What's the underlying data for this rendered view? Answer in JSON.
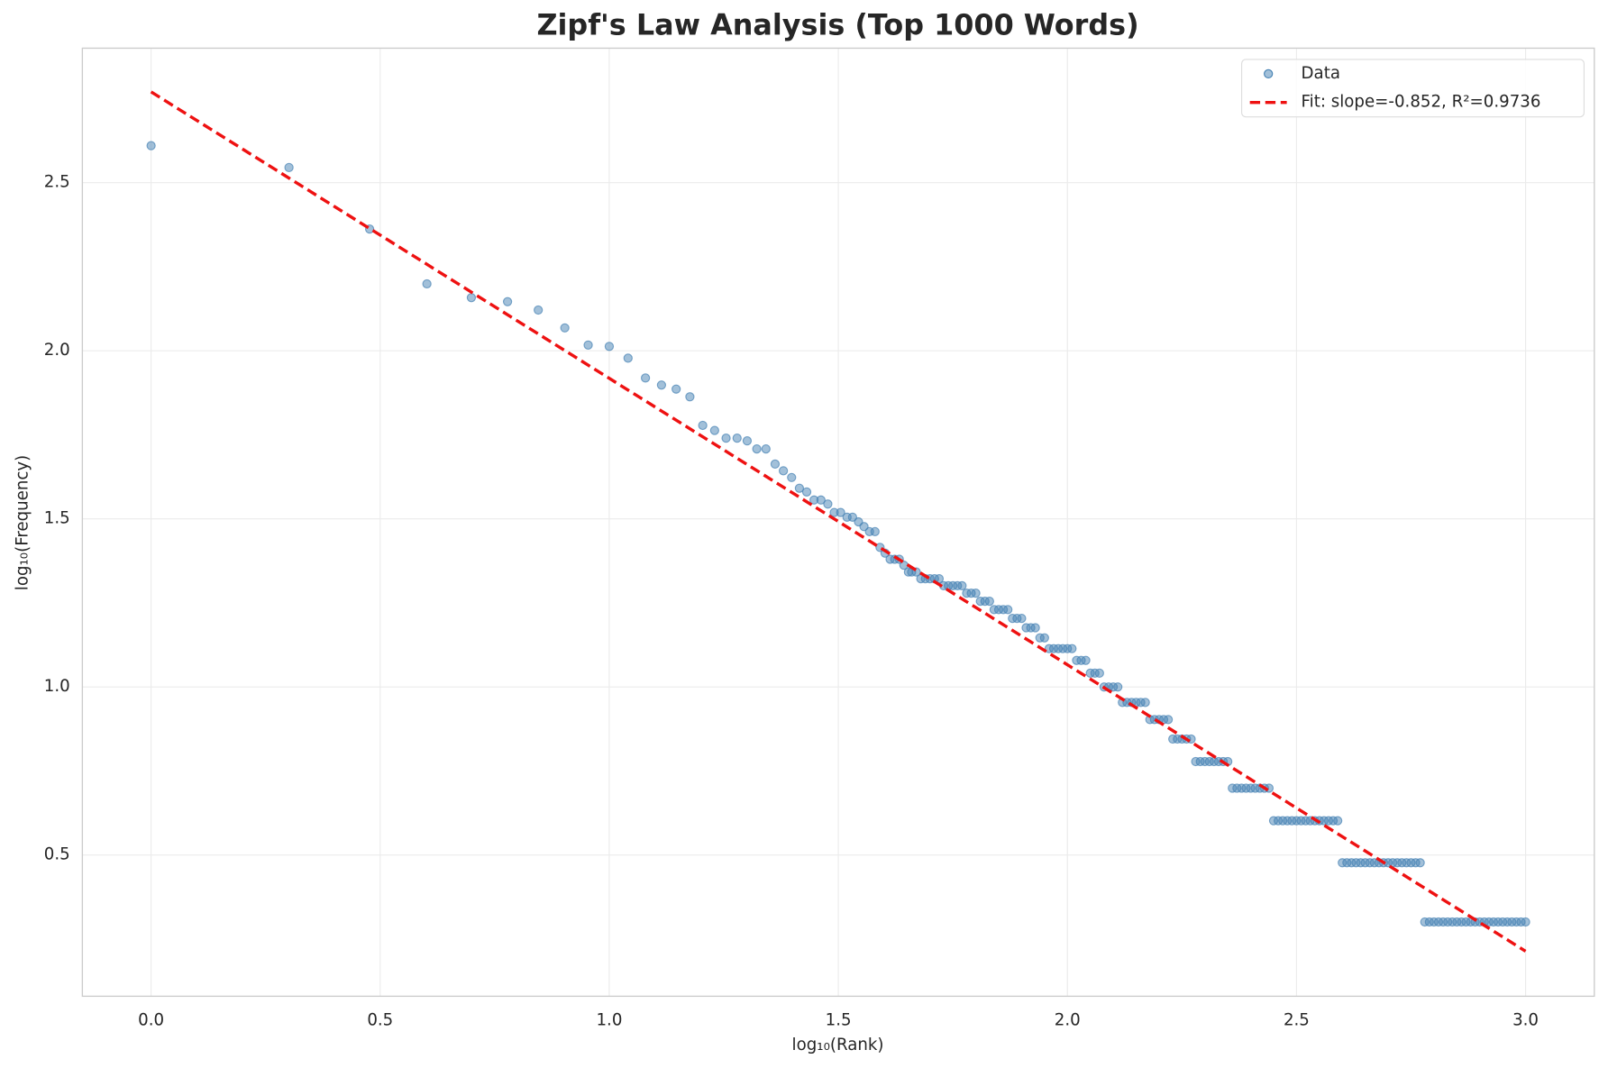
{
  "chart_data": {
    "type": "scatter",
    "title": "Zipf's Law Analysis (Top 1000 Words)",
    "x_label": "log₁₀(Rank)",
    "y_label": "log₁₀(Frequency)",
    "xlim": [
      -0.15,
      3.15
    ],
    "ylim": [
      0.08,
      2.9
    ],
    "xticks": [
      {
        "value": 0,
        "label": "0.0"
      },
      0.5,
      {
        "value": 1,
        "label": "1.0"
      },
      1.5,
      {
        "value": 2,
        "label": "2.0"
      },
      2.5,
      {
        "value": 3,
        "label": "3.0"
      }
    ],
    "yticks": [
      0.5,
      {
        "value": 1,
        "label": "1.0"
      },
      1.5,
      {
        "value": 2,
        "label": "2.0"
      },
      2.5
    ],
    "grid": true,
    "legend": "upper right",
    "series": [
      {
        "name": "Data",
        "color": "#4682b4",
        "kind": "points",
        "x": [
          0,
          0.301,
          0.477,
          0.602,
          0.699,
          0.778,
          0.845,
          0.903,
          0.954,
          1,
          1.041,
          1.079,
          1.114,
          1.146,
          1.176,
          1.204,
          1.23,
          1.255,
          1.279,
          1.301,
          1.322,
          1.342,
          1.362,
          1.38,
          1.398,
          1.415,
          1.431,
          1.447,
          1.462,
          1.477,
          1.491,
          1.505,
          1.519,
          1.531,
          1.544,
          1.556,
          1.568,
          1.58,
          1.591,
          1.602,
          1.613,
          1.623,
          1.633,
          1.643,
          1.653,
          1.66,
          1.67,
          1.68,
          1.69,
          1.7,
          1.71,
          1.72,
          1.73,
          1.74,
          1.75,
          1.76,
          1.77,
          1.78,
          1.79,
          1.8,
          1.81,
          1.82,
          1.83,
          1.84,
          1.85,
          1.86,
          1.87,
          1.88,
          1.89,
          1.9,
          1.91,
          1.92,
          1.93,
          1.94,
          1.95,
          1.96,
          1.97,
          1.98,
          1.99,
          2,
          2.01,
          2.02,
          2.03,
          2.04,
          2.05,
          2.06,
          2.07,
          2.08,
          2.09,
          2.1,
          2.11,
          2.12,
          2.13,
          2.14,
          2.15,
          2.16,
          2.17,
          2.18,
          2.19,
          2.2,
          2.21,
          2.22,
          2.23,
          2.24,
          2.25,
          2.26,
          2.27,
          2.28,
          2.29,
          2.3,
          2.31,
          2.32,
          2.33,
          2.34,
          2.35,
          2.36,
          2.37,
          2.38,
          2.39,
          2.4,
          2.41,
          2.42,
          2.43,
          2.44,
          2.45,
          2.46,
          2.47,
          2.48,
          2.49,
          2.5,
          2.51,
          2.52,
          2.53,
          2.54,
          2.55,
          2.56,
          2.57,
          2.58,
          2.59,
          2.6,
          2.61,
          2.62,
          2.63,
          2.64,
          2.65,
          2.66,
          2.67,
          2.68,
          2.69,
          2.7,
          2.71,
          2.72,
          2.73,
          2.74,
          2.75,
          2.76,
          2.77,
          2.78,
          2.79,
          2.8,
          2.81,
          2.82,
          2.83,
          2.84,
          2.85,
          2.86,
          2.87,
          2.88,
          2.89,
          2.9,
          2.91,
          2.92,
          2.93,
          2.94,
          2.95,
          2.96,
          2.97,
          2.98,
          2.99,
          3
        ],
        "values": [
          2.61,
          2.545,
          2.362,
          2.199,
          2.158,
          2.146,
          2.121,
          2.068,
          2.017,
          2.013,
          1.978,
          1.919,
          1.898,
          1.886,
          1.863,
          1.778,
          1.763,
          1.74,
          1.74,
          1.732,
          1.708,
          1.708,
          1.663,
          1.643,
          1.623,
          1.591,
          1.58,
          1.556,
          1.556,
          1.544,
          1.519,
          1.519,
          1.505,
          1.505,
          1.491,
          1.477,
          1.462,
          1.462,
          1.415,
          1.398,
          1.38,
          1.38,
          1.38,
          1.362,
          1.342,
          1.342,
          1.342,
          1.322,
          1.322,
          1.322,
          1.322,
          1.322,
          1.301,
          1.301,
          1.301,
          1.301,
          1.301,
          1.279,
          1.279,
          1.279,
          1.255,
          1.255,
          1.255,
          1.23,
          1.23,
          1.23,
          1.23,
          1.204,
          1.204,
          1.204,
          1.176,
          1.176,
          1.176,
          1.146,
          1.146,
          1.114,
          1.114,
          1.114,
          1.114,
          1.114,
          1.114,
          1.079,
          1.079,
          1.079,
          1.041,
          1.041,
          1.041,
          1,
          1,
          1,
          1,
          0.954,
          0.954,
          0.954,
          0.954,
          0.954,
          0.954,
          0.903,
          0.903,
          0.903,
          0.903,
          0.903,
          0.845,
          0.845,
          0.845,
          0.845,
          0.845,
          0.778,
          0.778,
          0.778,
          0.778,
          0.778,
          0.778,
          0.778,
          0.778,
          0.699,
          0.699,
          0.699,
          0.699,
          0.699,
          0.699,
          0.699,
          0.699,
          0.699,
          0.602,
          0.602,
          0.602,
          0.602,
          0.602,
          0.602,
          0.602,
          0.602,
          0.602,
          0.602,
          0.602,
          0.602,
          0.602,
          0.602,
          0.602,
          0.477,
          0.477,
          0.477,
          0.477,
          0.477,
          0.477,
          0.477,
          0.477,
          0.477,
          0.477,
          0.477,
          0.477,
          0.477,
          0.477,
          0.477,
          0.477,
          0.477,
          0.477,
          0.301,
          0.301,
          0.301,
          0.301,
          0.301,
          0.301,
          0.301,
          0.301,
          0.301,
          0.301,
          0.301,
          0.301,
          0.301,
          0.301,
          0.301,
          0.301,
          0.301,
          0.301,
          0.301,
          0.301,
          0.301,
          0.301,
          0.301
        ]
      },
      {
        "name": "Fit: slope=-0.852, R²=0.9736",
        "color": "#ee1111",
        "kind": "dashed-line",
        "x": [
          0,
          3
        ],
        "values": [
          2.77,
          0.214
        ]
      }
    ]
  }
}
